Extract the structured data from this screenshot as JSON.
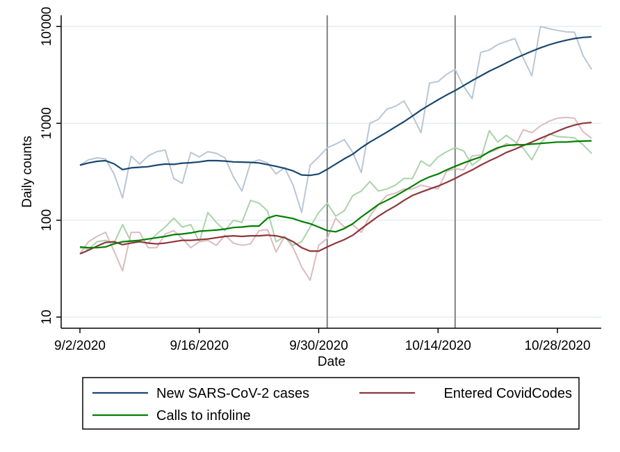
{
  "chart_data": {
    "type": "line",
    "title": "",
    "xlabel": "Date",
    "ylabel": "Daily counts",
    "y_scale": "log",
    "ylim": [
      10,
      12000
    ],
    "y_ticks": [
      10,
      100,
      1000,
      10000
    ],
    "y_tick_labels": [
      "10",
      "100",
      "1'000",
      "10'000"
    ],
    "xlim": [
      "2020-08-31",
      "2020-11-02"
    ],
    "x_ticks": [
      "2020-09-02",
      "2020-09-16",
      "2020-09-30",
      "2020-10-14",
      "2020-10-28"
    ],
    "x_tick_labels": [
      "9/2/2020",
      "9/16/2020",
      "9/30/2020",
      "10/14/2020",
      "10/28/2020"
    ],
    "grid": "horizontal",
    "vertical_lines": [
      "2020-10-01",
      "2020-10-16"
    ],
    "legend": {
      "placement": "bottom",
      "entries": [
        {
          "label": "New SARS-CoV-2 cases",
          "color": "#1a476f"
        },
        {
          "label": "Entered CovidCodes",
          "color": "#90353b"
        },
        {
          "label": "Calls to infoline",
          "color": "#008000"
        }
      ]
    },
    "dates": [
      "2020-09-02",
      "2020-09-03",
      "2020-09-04",
      "2020-09-05",
      "2020-09-06",
      "2020-09-07",
      "2020-09-08",
      "2020-09-09",
      "2020-09-10",
      "2020-09-11",
      "2020-09-12",
      "2020-09-13",
      "2020-09-14",
      "2020-09-15",
      "2020-09-16",
      "2020-09-17",
      "2020-09-18",
      "2020-09-19",
      "2020-09-20",
      "2020-09-21",
      "2020-09-22",
      "2020-09-23",
      "2020-09-24",
      "2020-09-25",
      "2020-09-26",
      "2020-09-27",
      "2020-09-28",
      "2020-09-29",
      "2020-09-30",
      "2020-10-01",
      "2020-10-02",
      "2020-10-03",
      "2020-10-04",
      "2020-10-05",
      "2020-10-06",
      "2020-10-07",
      "2020-10-08",
      "2020-10-09",
      "2020-10-10",
      "2020-10-11",
      "2020-10-12",
      "2020-10-13",
      "2020-10-14",
      "2020-10-15",
      "2020-10-16",
      "2020-10-17",
      "2020-10-18",
      "2020-10-19",
      "2020-10-20",
      "2020-10-21",
      "2020-10-22",
      "2020-10-23",
      "2020-10-24",
      "2020-10-25",
      "2020-10-26",
      "2020-10-27",
      "2020-10-28",
      "2020-10-29",
      "2020-10-30",
      "2020-10-31",
      "2020-11-01"
    ],
    "series": [
      {
        "name": "New SARS-CoV-2 cases",
        "kind": "daily",
        "color": "#b8c6d6",
        "values": [
          370,
          420,
          440,
          430,
          300,
          170,
          460,
          380,
          460,
          510,
          530,
          270,
          240,
          500,
          450,
          510,
          490,
          440,
          280,
          200,
          390,
          420,
          390,
          300,
          350,
          230,
          120,
          370,
          450,
          560,
          610,
          680,
          500,
          310,
          1000,
          1100,
          1400,
          1500,
          1700,
          1200,
          800,
          2600,
          2700,
          3200,
          3600,
          2400,
          1800,
          5400,
          5700,
          6500,
          7000,
          7500,
          4700,
          3100,
          10000,
          9500,
          9100,
          8800,
          8700,
          5000,
          3600
        ]
      },
      {
        "name": "New SARS-CoV-2 cases",
        "kind": "7-day average",
        "color": "#1a476f",
        "values": [
          370,
          390,
          405,
          412,
          382,
          333,
          347,
          352,
          357,
          370,
          380,
          377,
          388,
          392,
          400,
          412,
          412,
          408,
          400,
          398,
          395,
          390,
          375,
          360,
          343,
          323,
          293,
          290,
          300,
          335,
          380,
          430,
          480,
          560,
          640,
          720,
          810,
          920,
          1040,
          1190,
          1370,
          1550,
          1750,
          1960,
          2180,
          2450,
          2760,
          3090,
          3450,
          3800,
          4200,
          4650,
          5090,
          5550,
          6010,
          6450,
          6850,
          7200,
          7500,
          7700,
          7800
        ]
      },
      {
        "name": "Entered CovidCodes",
        "kind": "daily",
        "color": "#dcbbbe",
        "values": [
          45,
          60,
          68,
          75,
          48,
          30,
          75,
          75,
          52,
          52,
          72,
          78,
          65,
          52,
          60,
          62,
          55,
          70,
          58,
          55,
          57,
          78,
          80,
          47,
          68,
          52,
          33,
          24,
          55,
          65,
          105,
          85,
          90,
          75,
          110,
          145,
          180,
          190,
          210,
          210,
          230,
          220,
          210,
          320,
          340,
          330,
          460,
          470,
          500,
          540,
          620,
          580,
          860,
          800,
          940,
          1050,
          1130,
          1150,
          1130,
          820,
          700
        ]
      },
      {
        "name": "Entered CovidCodes",
        "kind": "7-day average",
        "color": "#90353b",
        "values": [
          45,
          49,
          54,
          59,
          60,
          56,
          58,
          60,
          58,
          57,
          58,
          60,
          62,
          62,
          63,
          64,
          66,
          68,
          69,
          68,
          69,
          69,
          70,
          69,
          66,
          60,
          52,
          48,
          48,
          53,
          58,
          63,
          70,
          82,
          95,
          110,
          125,
          140,
          160,
          180,
          195,
          210,
          225,
          245,
          270,
          300,
          330,
          370,
          410,
          450,
          500,
          540,
          590,
          640,
          700,
          760,
          830,
          900,
          960,
          1000,
          1020
        ]
      },
      {
        "name": "Calls to infoline",
        "kind": "daily",
        "color": "#a9d3a9",
        "values": [
          52,
          50,
          60,
          62,
          58,
          90,
          60,
          60,
          58,
          72,
          85,
          105,
          85,
          90,
          60,
          120,
          95,
          78,
          100,
          95,
          160,
          150,
          125,
          60,
          68,
          55,
          60,
          85,
          120,
          150,
          110,
          125,
          180,
          200,
          250,
          200,
          210,
          230,
          270,
          270,
          410,
          360,
          450,
          510,
          560,
          520,
          370,
          430,
          840,
          640,
          750,
          650,
          550,
          420,
          620,
          780,
          730,
          720,
          710,
          600,
          490
        ]
      },
      {
        "name": "Calls to infoline",
        "kind": "7-day average",
        "color": "#008000",
        "values": [
          53,
          52,
          52,
          53,
          57,
          60,
          61,
          62,
          64,
          66,
          68,
          71,
          72,
          74,
          77,
          78,
          79,
          81,
          84,
          85,
          87,
          87,
          105,
          112,
          108,
          104,
          97,
          92,
          85,
          78,
          76,
          82,
          92,
          108,
          125,
          145,
          160,
          178,
          200,
          225,
          255,
          280,
          300,
          330,
          360,
          390,
          420,
          450,
          510,
          560,
          590,
          600,
          600,
          610,
          620,
          630,
          640,
          640,
          650,
          655,
          660
        ]
      }
    ]
  }
}
